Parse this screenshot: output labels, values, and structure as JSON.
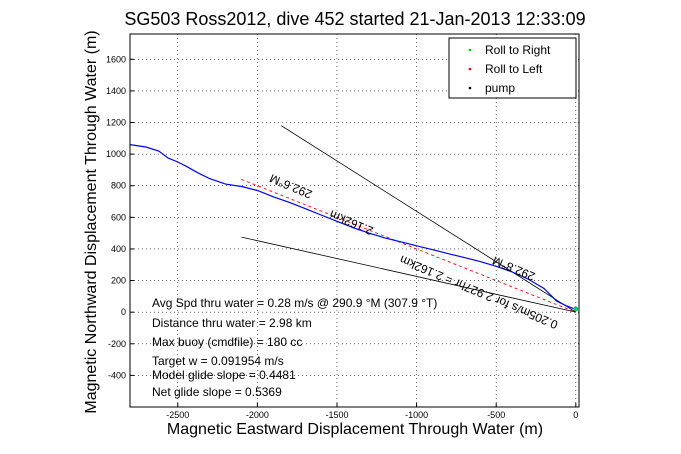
{
  "chart_data": {
    "type": "line",
    "title": "SG503 Ross2012, dive 452 started 21-Jan-2013 12:33:09",
    "xlabel": "Magnetic Eastward Displacement Through Water (m)",
    "ylabel": "Magnetic Northward Displacement Through Water (m)",
    "xlim": [
      -2800,
      20
    ],
    "ylim": [
      -600,
      1760
    ],
    "x_ticks": [
      -2500,
      -2000,
      -1500,
      -1000,
      -500,
      0
    ],
    "y_ticks": [
      -400,
      -200,
      0,
      200,
      400,
      600,
      800,
      1000,
      1200,
      1400,
      1600
    ],
    "grid": true,
    "legend_position": "top-right",
    "legend": [
      {
        "name": "Roll to Right",
        "color": "#00cc00",
        "marker": "dot"
      },
      {
        "name": "Roll to Left",
        "color": "#ff0000",
        "marker": "dot"
      },
      {
        "name": "pump",
        "color": "#000000",
        "marker": "dot"
      }
    ],
    "track": {
      "color": "#0000ff",
      "x": [
        -2800,
        -2700,
        -2620,
        -2560,
        -2500,
        -2440,
        -2380,
        -2300,
        -2200,
        -2100,
        -2000,
        -1900,
        -1800,
        -1700,
        -1600,
        -1500,
        -1400,
        -1300,
        -1200,
        -1100,
        -1000,
        -900,
        -800,
        -700,
        -600,
        -500,
        -400,
        -300,
        -200,
        -120,
        -60,
        -20,
        0
      ],
      "y": [
        1060,
        1045,
        1020,
        975,
        950,
        920,
        885,
        845,
        810,
        795,
        770,
        730,
        695,
        655,
        615,
        575,
        535,
        500,
        470,
        445,
        420,
        395,
        370,
        345,
        320,
        290,
        255,
        210,
        150,
        70,
        40,
        25,
        20
      ]
    },
    "guide_lines": [
      {
        "x": [
          -1850,
          0
        ],
        "y": [
          1180,
          0
        ]
      },
      {
        "x": [
          -2100,
          0
        ],
        "y": [
          475,
          0
        ]
      }
    ],
    "red_dashed": {
      "x": [
        -2100,
        0
      ],
      "y": [
        840,
        0
      ]
    },
    "rotated_labels": [
      {
        "text": "292.6°M",
        "x": -1780,
        "y": 820,
        "angle": 23
      },
      {
        "text": "2.162km",
        "x": -1400,
        "y": 590,
        "angle": 23
      },
      {
        "text": "292.8°M",
        "x": -380,
        "y": 300,
        "angle": 23
      },
      {
        "text": "0.205m/s for 2.927hr = 2.162km",
        "x": -600,
        "y": 150,
        "angle": 23
      }
    ]
  },
  "annotations": [
    "Avg Spd thru water =  0.28 m/s @ 290.9  °M (307.9 °T)",
    "Distance thru water =  2.98 km",
    "Max buoy (cmdfile) = 180 cc",
    "Target w = 0.091954 m/s",
    "Model glide slope = 0.4481",
    "Net glide slope = 0.5369"
  ]
}
